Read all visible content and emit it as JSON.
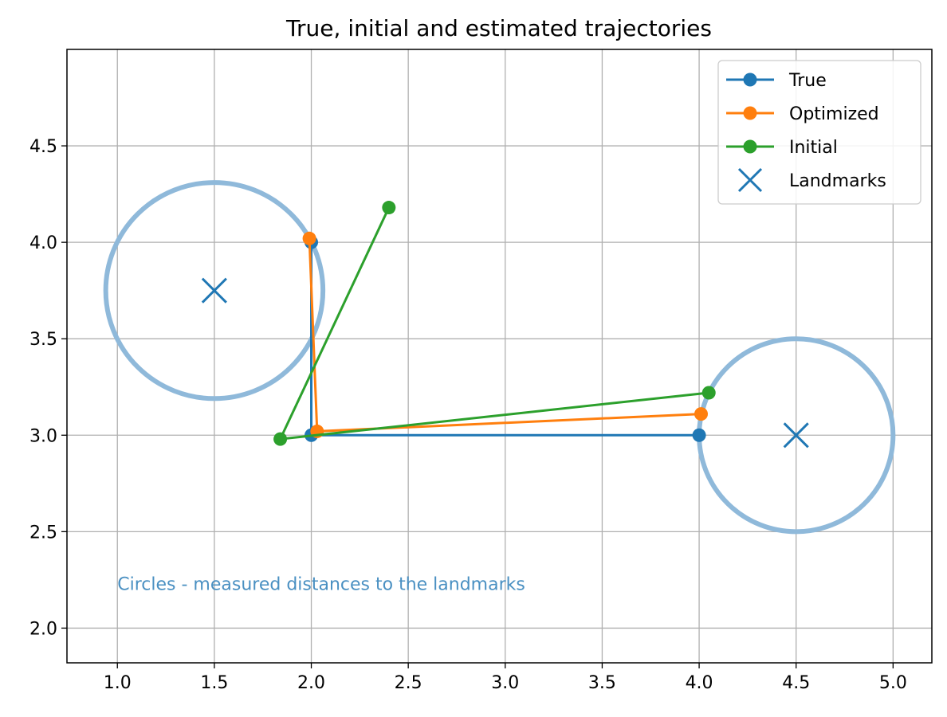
{
  "chart_data": {
    "type": "line",
    "title": "True, initial and estimated trajectories",
    "xlabel": "",
    "ylabel": "",
    "xlim": [
      0.74,
      5.2
    ],
    "ylim": [
      1.82,
      5.0
    ],
    "xticks": [
      1.0,
      1.5,
      2.0,
      2.5,
      3.0,
      3.5,
      4.0,
      4.5,
      5.0
    ],
    "xtick_labels": [
      "1.0",
      "1.5",
      "2.0",
      "2.5",
      "3.0",
      "3.5",
      "4.0",
      "4.5",
      "5.0"
    ],
    "yticks": [
      2.0,
      2.5,
      3.0,
      3.5,
      4.0,
      4.5
    ],
    "ytick_labels": [
      "2.0",
      "2.5",
      "3.0",
      "3.5",
      "4.0",
      "4.5"
    ],
    "grid": true,
    "legend_position": "top-right",
    "series": [
      {
        "name": "True",
        "color": "#1f77b4",
        "marker": "circle",
        "x": [
          4.0,
          2.0,
          2.0
        ],
        "y": [
          3.0,
          3.0,
          4.0
        ]
      },
      {
        "name": "Optimized",
        "color": "#ff7f0e",
        "marker": "circle",
        "x": [
          4.01,
          2.03,
          1.99
        ],
        "y": [
          3.11,
          3.02,
          4.02
        ]
      },
      {
        "name": "Initial",
        "color": "#2ca02c",
        "marker": "circle",
        "x": [
          4.05,
          1.84,
          2.4
        ],
        "y": [
          3.22,
          2.98,
          4.18
        ]
      },
      {
        "name": "Landmarks",
        "color": "#1f77b4",
        "marker": "x",
        "x": [
          1.5,
          4.5
        ],
        "y": [
          3.75,
          3.0
        ]
      }
    ],
    "circles": [
      {
        "cx": 1.5,
        "cy": 3.75,
        "r": 0.56,
        "color": "#8fb9da"
      },
      {
        "cx": 4.5,
        "cy": 3.0,
        "r": 0.5,
        "color": "#8fb9da"
      }
    ],
    "annotation": {
      "text": "Circles - measured distances to the landmarks",
      "x": 1.0,
      "y": 2.23,
      "color": "#4a90c2"
    }
  }
}
